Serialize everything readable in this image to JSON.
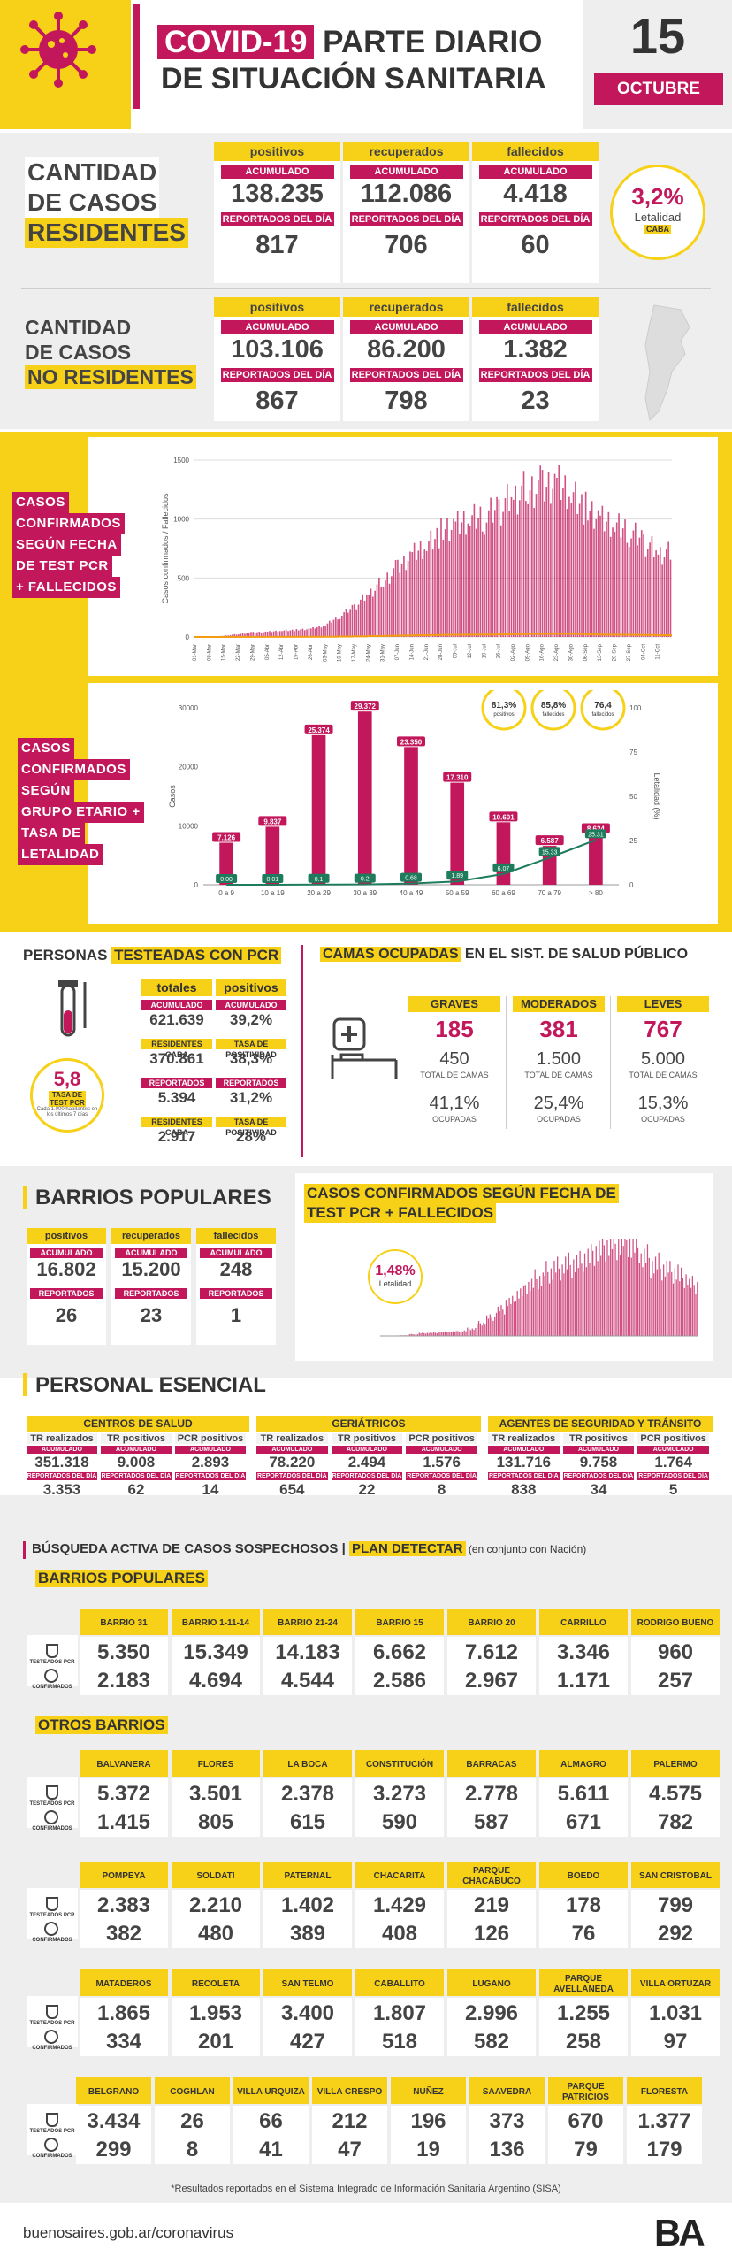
{
  "header": {
    "covid": "COVID-19",
    "title1": " PARTE DIARIO",
    "title2": "DE SITUACIÓN SANITARIA",
    "day": "15",
    "month": "OCTUBRE"
  },
  "residentes": {
    "label1": "CANTIDAD",
    "label2": "DE CASOS",
    "label3": "RESIDENTES",
    "cards": [
      {
        "title": "positivos",
        "acc_label": "ACUMULADO",
        "acc": "138.235",
        "day_label": "REPORTADOS DEL DÍA",
        "day": "817"
      },
      {
        "title": "recuperados",
        "acc_label": "ACUMULADO",
        "acc": "112.086",
        "day_label": "REPORTADOS DEL DÍA",
        "day": "706"
      },
      {
        "title": "fallecidos",
        "acc_label": "ACUMULADO",
        "acc": "4.418",
        "day_label": "REPORTADOS DEL DÍA",
        "day": "60"
      }
    ],
    "letalidad": {
      "value": "3,2%",
      "label": "Letalidad",
      "tag": "CABA"
    }
  },
  "noresidentes": {
    "label1": "CANTIDAD",
    "label2": "DE CASOS",
    "label3": "NO RESIDENTES",
    "cards": [
      {
        "title": "positivos",
        "acc_label": "ACUMULADO",
        "acc": "103.106",
        "day_label": "REPORTADOS DEL DÍA",
        "day": "867"
      },
      {
        "title": "recuperados",
        "acc_label": "ACUMULADO",
        "acc": "86.200",
        "day_label": "REPORTADOS DEL DÍA",
        "day": "798"
      },
      {
        "title": "fallecidos",
        "acc_label": "ACUMULADO",
        "acc": "1.382",
        "day_label": "REPORTADOS DEL DÍA",
        "day": "23"
      }
    ]
  },
  "chart1": {
    "lbl": [
      "CASOS",
      "CONFIRMADOS",
      "SEGÚN FECHA",
      "DE TEST PCR",
      "+ FALLECIDOS"
    ],
    "ylabel": "Casos confirmados / Fallecidos"
  },
  "chart2": {
    "lbl": [
      "CASOS",
      "CONFIRMADOS",
      "SEGÚN",
      "GRUPO ETARIO +",
      "TASA DE",
      "LETALIDAD"
    ],
    "ylabel": "Casos",
    "y2label": "Letalidad (%)",
    "badges": [
      {
        "v": "81,3%",
        "l": "positivos"
      },
      {
        "v": "85,8%",
        "l": "fallecidos"
      },
      {
        "v": "76,4",
        "l": "fallecidos"
      }
    ]
  },
  "chart_data": [
    {
      "type": "bar",
      "title": "",
      "ylabel": "Casos confirmados / Fallecidos",
      "ylim": [
        0,
        1500
      ],
      "x": [
        "01-Mar",
        "08-Mar",
        "15-Mar",
        "22-Mar",
        "29-Mar",
        "05-Abr",
        "12-Abr",
        "19-Abr",
        "26-Abr",
        "03-May",
        "10-May",
        "17-May",
        "24-May",
        "31-May",
        "07-Jun",
        "14-Jun",
        "21-Jun",
        "28-Jun",
        "05-Jul",
        "12-Jul",
        "19-Jul",
        "26-Jul",
        "02-Ago",
        "09-Ago",
        "16-Ago",
        "23-Ago",
        "30-Ago",
        "06-Sep",
        "13-Sep",
        "20-Sep",
        "27-Sep",
        "04-Oct",
        "11-Oct"
      ],
      "series": [
        {
          "values": [
            0,
            2,
            10,
            25,
            40,
            45,
            55,
            60,
            70,
            100,
            180,
            260,
            370,
            480,
            600,
            720,
            800,
            900,
            950,
            1000,
            1020,
            1100,
            1200,
            1280,
            1300,
            1350,
            1250,
            1100,
            1000,
            950,
            900,
            820,
            720
          ]
        }
      ],
      "yticks": [
        0,
        500,
        1000,
        1500
      ]
    },
    {
      "type": "bar",
      "title": "",
      "ylabel": "Casos",
      "y2label": "Letalidad (%)",
      "ylim": [
        0,
        30000
      ],
      "categories": [
        "0 a 9",
        "10 a 19",
        "20 a 29",
        "30 a 39",
        "40 a 49",
        "50 a 59",
        "60 a 69",
        "70 a 79",
        "> 80"
      ],
      "values": [
        7126,
        9837,
        25374,
        29372,
        23350,
        17310,
        10601,
        6587,
        8624
      ],
      "labels": [
        "7.126",
        "9.837",
        "25.374",
        "29.372",
        "23.350",
        "17.310",
        "10.601",
        "6.587",
        "8.624"
      ],
      "line": {
        "values": [
          0.0,
          0.01,
          0.1,
          0.2,
          0.68,
          1.89,
          6.07,
          15.33,
          25.31
        ],
        "labels": [
          "0.00",
          "0.01",
          "0.1",
          "0.2",
          "0.68",
          "1.89",
          "6.07",
          "15.33",
          "25.31"
        ]
      },
      "yticks": [
        "0",
        "10000",
        "20000",
        "30000"
      ],
      "y2ticks": [
        "0",
        "25",
        "50",
        "75",
        "100"
      ]
    }
  ],
  "testeadas": {
    "title1": "PERSONAS ",
    "title2": "TESTEADAS CON PCR",
    "col1": "totales",
    "col2": "positivos",
    "rows": [
      {
        "l1": "ACUMULADO",
        "v1": "621.639",
        "l2": "ACUMULADO",
        "v2": "39,2%"
      },
      {
        "l1": "RESIDENTES CABA",
        "v1": "370.861",
        "l2": "TASA DE POSITIVIDAD",
        "v2": "38,3%"
      },
      {
        "l1": "REPORTADOS DEL DÍA",
        "v1": "5.394",
        "l2": "REPORTADOS DEL DÍA",
        "v2": "31,2%"
      },
      {
        "l1": "RESIDENTES CABA",
        "v1": "2.917",
        "l2": "TASA DE POSITIVIDAD",
        "v2": "28%"
      }
    ],
    "tasa": {
      "v": "5,8",
      "l": "TASA DE TEST PCR",
      "d": "Cada 1.000 habitantes en los últimos 7 días"
    }
  },
  "camas": {
    "title1": "CAMAS OCUPADAS",
    "title2": " EN EL SIST. DE SALUD PÚBLICO",
    "cols": [
      {
        "t": "GRAVES",
        "v": "185",
        "tot": "450",
        "tl": "TOTAL DE CAMAS",
        "p": "41,1%",
        "pl": "OCUPADAS"
      },
      {
        "t": "MODERADOS",
        "v": "381",
        "tot": "1.500",
        "tl": "TOTAL DE CAMAS",
        "p": "25,4%",
        "pl": "OCUPADAS"
      },
      {
        "t": "LEVES",
        "v": "767",
        "tot": "5.000",
        "tl": "TOTAL DE CAMAS",
        "p": "15,3%",
        "pl": "OCUPADAS"
      }
    ]
  },
  "barrios": {
    "title": "BARRIOS POPULARES",
    "cards": [
      {
        "t": "positivos",
        "al": "ACUMULADO",
        "a": "16.802",
        "dl": "REPORTADOS DEL DÍA",
        "d": "26"
      },
      {
        "t": "recuperados",
        "al": "ACUMULADO",
        "a": "15.200",
        "dl": "REPORTADOS DEL DÍA",
        "d": "23"
      },
      {
        "t": "fallecidos",
        "al": "ACUMULADO",
        "a": "248",
        "dl": "REPORTADOS DEL DÍA",
        "d": "1"
      }
    ],
    "chart_title1": "CASOS CONFIRMADOS SEGÚN FECHA DE",
    "chart_title2": "TEST PCR + FALLECIDOS",
    "let_v": "1,48%",
    "let_l": "Letalidad"
  },
  "esencial": {
    "title": "PERSONAL ESENCIAL",
    "groups": [
      {
        "t": "CENTROS DE SALUD",
        "cols": [
          {
            "h": "TR realizados",
            "a": "351.318",
            "d": "3.353"
          },
          {
            "h": "TR positivos",
            "a": "9.008",
            "d": "62"
          },
          {
            "h": "PCR positivos",
            "a": "2.893",
            "d": "14"
          }
        ]
      },
      {
        "t": "GERIÁTRICOS",
        "cols": [
          {
            "h": "TR realizados",
            "a": "78.220",
            "d": "654"
          },
          {
            "h": "TR positivos",
            "a": "2.494",
            "d": "22"
          },
          {
            "h": "PCR positivos",
            "a": "1.576",
            "d": "8"
          }
        ]
      },
      {
        "t": "AGENTES DE SEGURIDAD Y TRÁNSITO",
        "cols": [
          {
            "h": "TR realizados",
            "a": "131.716",
            "d": "838"
          },
          {
            "h": "TR positivos",
            "a": "9.758",
            "d": "34"
          },
          {
            "h": "PCR positivos",
            "a": "1.764",
            "d": "5"
          }
        ]
      }
    ],
    "acc": "ACUMULADO",
    "day": "REPORTADOS DEL DÍA"
  },
  "busqueda": {
    "t1": "BÚSQUEDA ACTIVA DE CASOS SOSPECHOSOS | ",
    "t2": "PLAN DETECTAR",
    "t3": " (en conjunto con Nación)",
    "bp": "BARRIOS POPULARES",
    "ob": "OTROS BARRIOS",
    "tl": "TESTEADOS PCR",
    "cl": "CONFIRMADOS",
    "bp_rows": [
      {
        "names": [
          "BARRIO 31",
          "BARRIO 1-11-14",
          "BARRIO 21-24",
          "BARRIO 15",
          "BARRIO 20",
          "CARRILLO",
          "RODRIGO BUENO"
        ],
        "t": [
          "5.350",
          "15.349",
          "14.183",
          "6.662",
          "7.612",
          "3.346",
          "960"
        ],
        "c": [
          "2.183",
          "4.694",
          "4.544",
          "2.586",
          "2.967",
          "1.171",
          "257"
        ]
      }
    ],
    "ob_rows": [
      {
        "names": [
          "BALVANERA",
          "FLORES",
          "LA BOCA",
          "CONSTITUCIÓN",
          "BARRACAS",
          "ALMAGRO",
          "PALERMO"
        ],
        "t": [
          "5.372",
          "3.501",
          "2.378",
          "3.273",
          "2.778",
          "5.611",
          "4.575"
        ],
        "c": [
          "1.415",
          "805",
          "615",
          "590",
          "587",
          "671",
          "782"
        ]
      },
      {
        "names": [
          "POMPEYA",
          "SOLDATI",
          "PATERNAL",
          "CHACARITA",
          "PARQUE CHACABUCO",
          "BOEDO",
          "SAN CRISTOBAL"
        ],
        "t": [
          "2.383",
          "2.210",
          "1.402",
          "1.429",
          "219",
          "178",
          "799"
        ],
        "c": [
          "382",
          "480",
          "389",
          "408",
          "126",
          "76",
          "292"
        ]
      },
      {
        "names": [
          "MATADEROS",
          "RECOLETA",
          "SAN TELMO",
          "CABALLITO",
          "LUGANO",
          "PARQUE AVELLANEDA",
          "VILLA ORTUZAR"
        ],
        "t": [
          "1.865",
          "1.953",
          "3.400",
          "1.807",
          "2.996",
          "1.255",
          "1.031"
        ],
        "c": [
          "334",
          "201",
          "427",
          "518",
          "582",
          "258",
          "97"
        ]
      },
      {
        "names": [
          "BELGRANO",
          "COGHLAN",
          "VILLA URQUIZA",
          "VILLA CRESPO",
          "NUÑEZ",
          "SAAVEDRA",
          "PARQUE PATRICIOS",
          "FLORESTA"
        ],
        "t": [
          "3.434",
          "26",
          "66",
          "212",
          "196",
          "373",
          "670",
          "1.377"
        ],
        "c": [
          "299",
          "8",
          "41",
          "47",
          "19",
          "136",
          "79",
          "179"
        ]
      }
    ]
  },
  "footer": {
    "note": "*Resultados reportados en el Sistema Integrado de Información Sanitaria Argentino (SISA)",
    "url": "buenosaires.gob.ar/coronavirus",
    "logo": "BA"
  }
}
